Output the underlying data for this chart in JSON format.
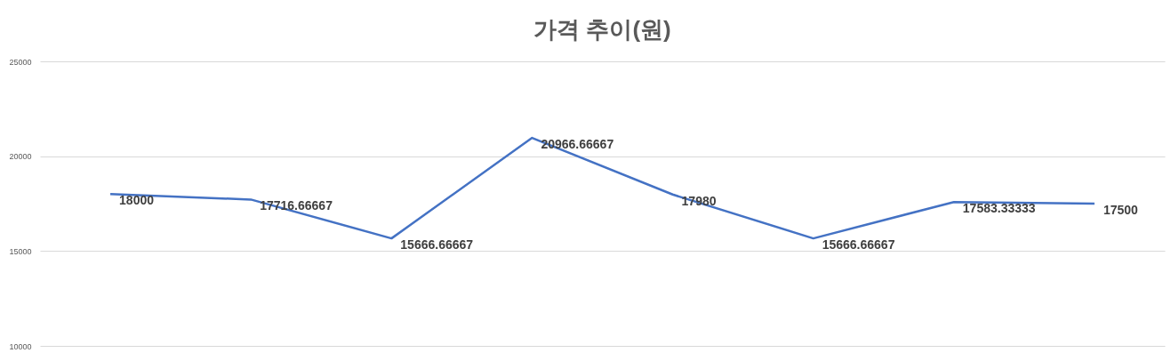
{
  "chart_data": {
    "type": "line",
    "title": "가격 추이(원)",
    "categories": [
      null,
      null,
      null,
      null,
      null,
      null,
      null,
      null
    ],
    "series": [
      {
        "color": "#4472c4",
        "values": [
          18000,
          17716.66667,
          15666.66667,
          20966.66667,
          17980,
          15666.66667,
          17583.33333,
          17500
        ]
      }
    ],
    "ylim": [
      10000,
      25000
    ],
    "yticks": [
      10000,
      15000,
      20000,
      25000
    ],
    "grid": "y",
    "tick_labels": "y",
    "data_labels": true,
    "marker": "none",
    "line_style": "solid"
  }
}
